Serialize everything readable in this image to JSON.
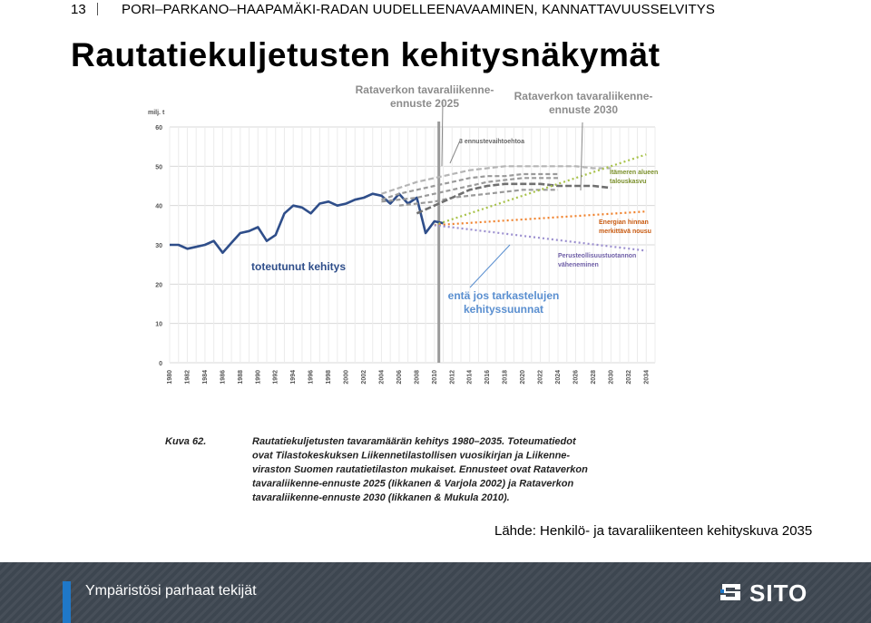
{
  "header": {
    "page_number": "13",
    "subtitle": "PORI–PARKANO–HAAPAMÄKI-RADAN UUDELLEENAVAAMINEN, KANNATTAVUUSSELVITYS"
  },
  "title": "Rautatiekuljetusten kehitysnäkymät",
  "source": "Lähde: Henkilö- ja tavaraliikenteen kehityskuva 2035",
  "footer": {
    "slogan": "Ympäristösi parhaat tekijät",
    "logo_text": "SITO"
  },
  "colors": {
    "actual": "#2f4e8a",
    "forecast_2025": "#9a9a9a",
    "forecast_2030": "#707070",
    "green": "#a8c24a",
    "orange": "#f0822d",
    "purple": "#9b8fcf",
    "callout": "#5a8fd0"
  },
  "chart_data": {
    "type": "line",
    "unit_label": "milj. t",
    "ylim": [
      0,
      60
    ],
    "yticks": [
      0,
      10,
      20,
      30,
      40,
      50,
      60
    ],
    "xlim": [
      1980,
      2035
    ],
    "xticks": [
      1980,
      1982,
      1984,
      1986,
      1988,
      1990,
      1992,
      1994,
      1996,
      1998,
      2000,
      2002,
      2004,
      2006,
      2008,
      2010,
      2012,
      2014,
      2016,
      2018,
      2020,
      2022,
      2024,
      2026,
      2028,
      2030,
      2032,
      2034
    ],
    "xtick_labels": [
      "1980",
      "1982",
      "1984",
      "1986",
      "1988",
      "1990",
      "1992",
      "1994",
      "1996",
      "1998",
      "2000",
      "2002",
      "2004",
      "2006",
      "2008",
      "2010",
      "2012",
      "2014",
      "2016",
      "2018",
      "2020",
      "2022",
      "2024",
      "2026",
      "2028",
      "2030",
      "2032",
      "2034"
    ],
    "divider_year": 2010.5,
    "series": [
      {
        "id": "actual",
        "x": [
          1980,
          1981,
          1982,
          1983,
          1984,
          1985,
          1986,
          1987,
          1988,
          1989,
          1990,
          1991,
          1992,
          1993,
          1994,
          1995,
          1996,
          1997,
          1998,
          1999,
          2000,
          2001,
          2002,
          2003,
          2004,
          2005,
          2006,
          2007,
          2008,
          2009,
          2010,
          2011
        ],
        "y": [
          30,
          30,
          29,
          29.5,
          30,
          31,
          28,
          30.5,
          33,
          33.5,
          34.5,
          31,
          32.5,
          38,
          40,
          39.5,
          38,
          40.5,
          41,
          40,
          40.5,
          41.5,
          42,
          43,
          42.5,
          40.5,
          43,
          40.5,
          42,
          33,
          36,
          35.5
        ]
      },
      {
        "id": "f2025_a",
        "x": [
          2004,
          2006,
          2008,
          2010,
          2012,
          2014,
          2016,
          2018,
          2020,
          2022,
          2024
        ],
        "y": [
          41.5,
          43,
          44,
          45,
          46,
          47,
          47.5,
          47.5,
          48,
          48,
          48
        ]
      },
      {
        "id": "f2025_b",
        "x": [
          2004,
          2006,
          2008,
          2010,
          2012,
          2014,
          2016,
          2018,
          2020,
          2022,
          2024
        ],
        "y": [
          41,
          41.5,
          42,
          43,
          44,
          45,
          46,
          46.5,
          47,
          47,
          47
        ]
      },
      {
        "id": "f2025_c",
        "x": [
          2006,
          2008,
          2010,
          2012,
          2014,
          2016,
          2018,
          2020,
          2022,
          2024
        ],
        "y": [
          40,
          40.5,
          41,
          42,
          42.5,
          43,
          43.5,
          44,
          44,
          44
        ]
      },
      {
        "id": "f2030_main",
        "x": [
          2008,
          2010,
          2012,
          2014,
          2016,
          2018,
          2020,
          2022,
          2024,
          2026,
          2028,
          2030
        ],
        "y": [
          38,
          40,
          42,
          44,
          45,
          45.5,
          45.5,
          45.5,
          45,
          45,
          45,
          44.5
        ]
      },
      {
        "id": "f2030_upper",
        "x": [
          2004,
          2006,
          2008,
          2010,
          2012,
          2014,
          2016,
          2018,
          2020,
          2022,
          2024,
          2026,
          2028,
          2030
        ],
        "y": [
          43,
          44.5,
          46,
          47,
          48,
          49,
          49.5,
          50,
          50,
          50,
          50,
          50,
          49.5,
          49.5
        ]
      },
      {
        "id": "green",
        "x": [
          2010,
          2034
        ],
        "y": [
          35,
          53
        ]
      },
      {
        "id": "orange",
        "x": [
          2010,
          2034
        ],
        "y": [
          35,
          38.5
        ]
      },
      {
        "id": "purple",
        "x": [
          2010,
          2034
        ],
        "y": [
          35,
          28.5
        ]
      }
    ],
    "annotations": [
      {
        "id": "forecast_2025",
        "text": [
          "Rataverkon tavaraliikenne-",
          "ennuste 2025"
        ]
      },
      {
        "id": "forecast_2030",
        "text": [
          "Rataverkon tavaraliikenne-",
          "ennuste 2030"
        ]
      },
      {
        "id": "three_options",
        "text": [
          "3 ennustevaihtoehtoa"
        ]
      },
      {
        "id": "actual_development",
        "text": [
          "toteutunut kehitys"
        ]
      },
      {
        "id": "continued_trend",
        "text": [
          "entä jos tarkastelujen",
          "kehityssuunnat"
        ]
      },
      {
        "id": "baltic",
        "text": [
          "Itämeren alueen",
          "talouskasvu"
        ]
      },
      {
        "id": "energy",
        "text": [
          "Energian hinnan",
          "merkittävä nousu"
        ]
      },
      {
        "id": "industry",
        "text": [
          "Perusteollisuustuotannon",
          "väheneminen"
        ]
      }
    ],
    "caption": {
      "label": "Kuva 62.",
      "lines": [
        "Rautatiekuljetusten tavaramäärän kehitys 1980–2035. Toteumatiedot",
        "ovat Tilastokeskuksen Liikennetilastollisen vuosikirjan ja Liikenne-",
        "viraston Suomen rautatietilaston mukaiset. Ennusteet ovat Rataverkon",
        "tavaraliikenne-ennuste 2025 (Iikkanen & Varjola 2002) ja Rataverkon",
        "tavaraliikenne-ennuste 2030 (Iikkanen & Mukula 2010)."
      ]
    }
  }
}
